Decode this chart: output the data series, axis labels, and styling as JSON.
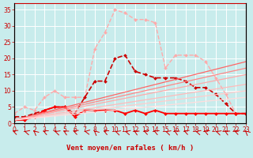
{
  "background_color": "#c8ecec",
  "grid_color": "#ffffff",
  "xlabel": "Vent moyen/en rafales ( km/h )",
  "xlim": [
    0,
    23
  ],
  "ylim": [
    0,
    37
  ],
  "xticks": [
    0,
    1,
    2,
    3,
    4,
    5,
    6,
    7,
    8,
    9,
    10,
    11,
    12,
    13,
    14,
    15,
    16,
    17,
    18,
    19,
    20,
    21,
    22,
    23
  ],
  "yticks": [
    0,
    5,
    10,
    15,
    20,
    25,
    30,
    35
  ],
  "lines": [
    {
      "x": [
        0,
        1,
        2,
        3,
        4,
        5,
        6,
        7,
        8,
        9,
        10,
        11,
        12,
        13,
        14,
        15,
        16,
        17,
        18,
        19,
        20,
        21,
        22,
        23
      ],
      "y": [
        3,
        5,
        4,
        8,
        10,
        8,
        8,
        8,
        23,
        28,
        35,
        34,
        32,
        32,
        31,
        17,
        21,
        21,
        21,
        19,
        14,
        9,
        3,
        3
      ],
      "color": "#ffaaaa",
      "lw": 1.0,
      "marker": "D",
      "ms": 2.0,
      "ls": "--"
    },
    {
      "x": [
        0,
        1,
        2,
        3,
        4,
        5,
        6,
        7,
        8,
        9,
        10,
        11,
        12,
        13,
        14,
        15,
        16,
        17,
        18,
        19,
        20,
        21,
        22,
        23
      ],
      "y": [
        2,
        2,
        3,
        4,
        5,
        5,
        3,
        8,
        13,
        13,
        20,
        21,
        16,
        15,
        14,
        14,
        14,
        13,
        11,
        11,
        9,
        6,
        3,
        3
      ],
      "color": "#cc0000",
      "lw": 1.2,
      "marker": "D",
      "ms": 2.0,
      "ls": "--"
    },
    {
      "x": [
        0,
        1,
        2,
        3,
        4,
        5,
        6,
        7,
        8,
        9,
        10,
        11,
        12,
        13,
        14,
        15,
        16,
        17,
        18,
        19,
        20,
        21,
        22,
        23
      ],
      "y": [
        1,
        1,
        2,
        4,
        5,
        5,
        2,
        4,
        4,
        4,
        4,
        3,
        4,
        3,
        4,
        3,
        3,
        3,
        3,
        3,
        3,
        3,
        3,
        3
      ],
      "color": "#ff0000",
      "lw": 1.3,
      "marker": "D",
      "ms": 2.0,
      "ls": "-"
    },
    {
      "x": [
        0,
        23
      ],
      "y": [
        1,
        19
      ],
      "color": "#ff6666",
      "lw": 0.9,
      "marker": null,
      "ms": 0,
      "ls": "-"
    },
    {
      "x": [
        0,
        23
      ],
      "y": [
        1,
        17
      ],
      "color": "#ff8888",
      "lw": 0.9,
      "marker": null,
      "ms": 0,
      "ls": "-"
    },
    {
      "x": [
        0,
        23
      ],
      "y": [
        1,
        15
      ],
      "color": "#ffaaaa",
      "lw": 0.9,
      "marker": null,
      "ms": 0,
      "ls": "-"
    },
    {
      "x": [
        0,
        23
      ],
      "y": [
        1,
        12
      ],
      "color": "#ffbbbb",
      "lw": 0.9,
      "marker": null,
      "ms": 0,
      "ls": "-"
    },
    {
      "x": [
        0,
        23
      ],
      "y": [
        1,
        10
      ],
      "color": "#ffcccc",
      "lw": 0.9,
      "marker": null,
      "ms": 0,
      "ls": "-"
    },
    {
      "x": [
        0,
        23
      ],
      "y": [
        1,
        8
      ],
      "color": "#ffdddd",
      "lw": 0.9,
      "marker": null,
      "ms": 0,
      "ls": "-"
    }
  ],
  "axis_color": "#cc0000",
  "tick_color": "#cc0000",
  "label_color": "#cc0000",
  "label_fontsize": 6.5,
  "tick_fontsize": 5.5,
  "arrow_angles": [
    220,
    230,
    200,
    215,
    225,
    210,
    220,
    240,
    200,
    215,
    225,
    230,
    210,
    220,
    215,
    225,
    210,
    220,
    230,
    215,
    225,
    210,
    220,
    200
  ]
}
